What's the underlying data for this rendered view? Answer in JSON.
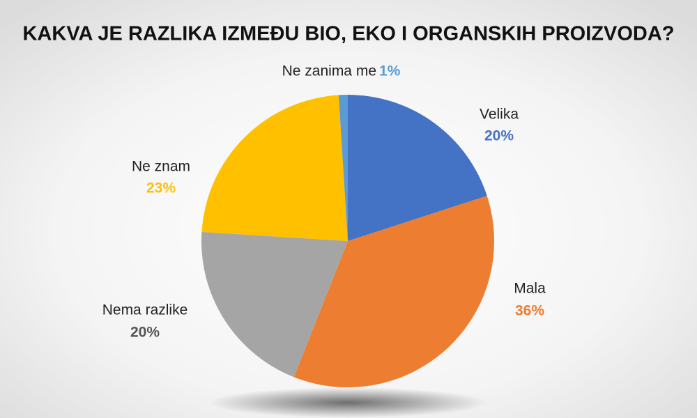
{
  "chart_data": {
    "type": "pie",
    "title": "KAKVA JE RAZLIKA IZMEĐU BIO, EKO I ORGANSKIH PROIZVODA?",
    "categories": [
      "Velika",
      "Mala",
      "Nema razlike",
      "Ne znam",
      "Ne zanima me"
    ],
    "values": [
      20,
      36,
      20,
      23,
      1
    ],
    "value_labels": [
      "20%",
      "36%",
      "20%",
      "23%",
      "1%"
    ],
    "colors": [
      "#4472c4",
      "#ed7d31",
      "#a5a5a5",
      "#ffc000",
      "#5b9bd5"
    ]
  }
}
